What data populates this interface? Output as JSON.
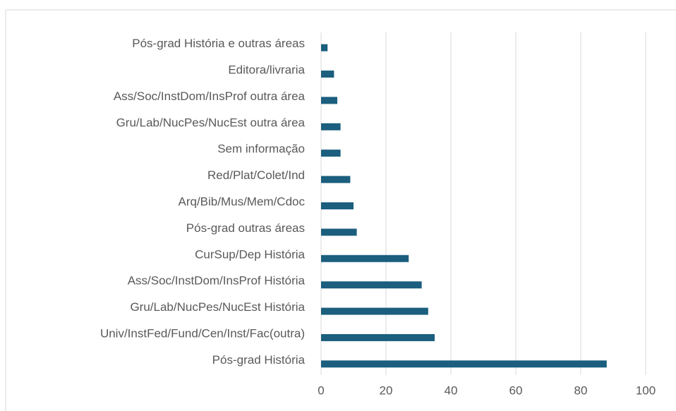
{
  "chart_data": {
    "type": "barh",
    "categories": [
      "Pós-grad História e outras áreas",
      "Editora/livraria",
      "Ass/Soc/InstDom/InsProf outra área",
      "Gru/Lab/NucPes/NucEst outra área",
      "Sem informação",
      "Red/Plat/Colet/Ind",
      "Arq/Bib/Mus/Mem/Cdoc",
      "Pós-grad outras áreas",
      "CurSup/Dep História",
      "Ass/Soc/InstDom/InsProf História",
      "Gru/Lab/NucPes/NucEst História",
      "Univ/InstFed/Fund/Cen/Inst/Fac(outra)",
      "Pós-grad História"
    ],
    "values": [
      2,
      4,
      5,
      6,
      6,
      9,
      10,
      11,
      27,
      31,
      33,
      35,
      88
    ],
    "color": "#1b5e7e",
    "xlim": [
      0,
      100
    ],
    "xticks": [
      0,
      20,
      40,
      60,
      80,
      100
    ],
    "grid": true
  }
}
